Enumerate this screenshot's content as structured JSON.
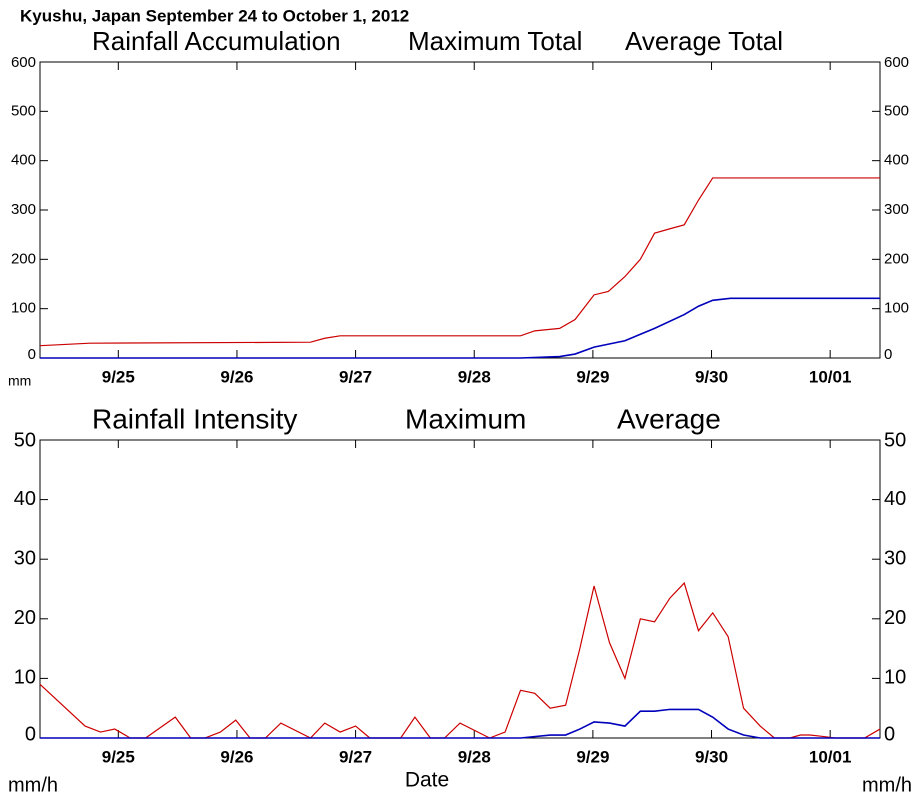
{
  "title": "Kyushu, Japan  September 24 to October 1, 2012",
  "chart_data": [
    {
      "type": "line",
      "title": "Rainfall Accumulation",
      "y_unit": "mm",
      "xlim": [
        -0.66,
        6.42
      ],
      "ylim": [
        0,
        600
      ],
      "xticks": [
        {
          "value": 0,
          "label": "9/25"
        },
        {
          "value": 1,
          "label": "9/26"
        },
        {
          "value": 2,
          "label": "9/27"
        },
        {
          "value": 3,
          "label": "9/28"
        },
        {
          "value": 4,
          "label": "9/29"
        },
        {
          "value": 5,
          "label": "9/30"
        },
        {
          "value": 6,
          "label": "10/01"
        }
      ],
      "yticks": [
        0,
        100,
        200,
        300,
        400,
        500,
        600
      ],
      "series": [
        {
          "name": "Maximum Total",
          "color": "#cc0000",
          "x": [
            -0.66,
            -0.24,
            1.62,
            1.74,
            1.87,
            3.39,
            3.51,
            3.72,
            3.85,
            4.01,
            4.13,
            4.27,
            4.4,
            4.52,
            4.65,
            4.77,
            4.89,
            5.01,
            6.42
          ],
          "values": [
            25,
            30,
            32,
            40,
            45,
            45,
            55,
            60,
            78,
            128,
            135,
            165,
            200,
            253,
            262,
            270,
            320,
            365,
            365
          ]
        },
        {
          "name": "Average Total",
          "color": "#0000bb",
          "x": [
            -0.66,
            3.39,
            3.72,
            3.85,
            4.01,
            4.27,
            4.52,
            4.77,
            4.89,
            5.01,
            5.16,
            6.42
          ],
          "values": [
            0,
            0,
            3,
            8,
            22,
            35,
            60,
            88,
            105,
            117,
            121,
            121
          ]
        }
      ]
    },
    {
      "type": "line",
      "title": "Rainfall Intensity",
      "y_unit": "mm/h",
      "xlabel": "Date",
      "xlim": [
        -0.66,
        6.42
      ],
      "ylim": [
        0,
        50
      ],
      "xticks": [
        {
          "value": 0,
          "label": "9/25"
        },
        {
          "value": 1,
          "label": "9/26"
        },
        {
          "value": 2,
          "label": "9/27"
        },
        {
          "value": 3,
          "label": "9/28"
        },
        {
          "value": 4,
          "label": "9/29"
        },
        {
          "value": 5,
          "label": "9/30"
        },
        {
          "value": 6,
          "label": "10/01"
        }
      ],
      "yticks": [
        0,
        10,
        20,
        30,
        40,
        50
      ],
      "series": [
        {
          "name": "Maximum",
          "color": "#cc0000",
          "x": [
            -0.66,
            -0.28,
            -0.15,
            -0.03,
            0.1,
            0.23,
            0.48,
            0.61,
            0.73,
            0.86,
            0.99,
            1.11,
            1.24,
            1.37,
            1.62,
            1.74,
            1.87,
            2.0,
            2.12,
            2.38,
            2.5,
            2.63,
            2.75,
            2.88,
            3.13,
            3.26,
            3.39,
            3.51,
            3.64,
            3.77,
            3.89,
            4.01,
            4.14,
            4.27,
            4.4,
            4.52,
            4.65,
            4.77,
            4.89,
            5.01,
            5.14,
            5.27,
            5.41,
            5.53,
            5.66,
            5.75,
            5.83,
            5.92,
            6.04,
            6.29,
            6.42
          ],
          "values": [
            9,
            2,
            1,
            1.5,
            0,
            0,
            3.5,
            0,
            0,
            1,
            3,
            0,
            0,
            2.5,
            0,
            2.5,
            1,
            2,
            0,
            0,
            3.5,
            0,
            0,
            2.5,
            0,
            1,
            8,
            7.5,
            5,
            5.5,
            15,
            25.5,
            16,
            10,
            20,
            19.5,
            23.5,
            26,
            18,
            21,
            17,
            5,
            2,
            0,
            0,
            0.5,
            0.5,
            0.3,
            0,
            0,
            1.5
          ]
        },
        {
          "name": "Average",
          "color": "#0000bb",
          "x": [
            -0.66,
            3.39,
            3.64,
            3.77,
            3.89,
            4.01,
            4.14,
            4.27,
            4.4,
            4.52,
            4.65,
            4.89,
            5.01,
            5.14,
            5.27,
            5.41,
            6.42
          ],
          "values": [
            0,
            0,
            0.5,
            0.5,
            1.5,
            2.7,
            2.5,
            2,
            4.5,
            4.5,
            4.8,
            4.8,
            3.5,
            1.5,
            0.5,
            0,
            0
          ]
        }
      ]
    }
  ]
}
